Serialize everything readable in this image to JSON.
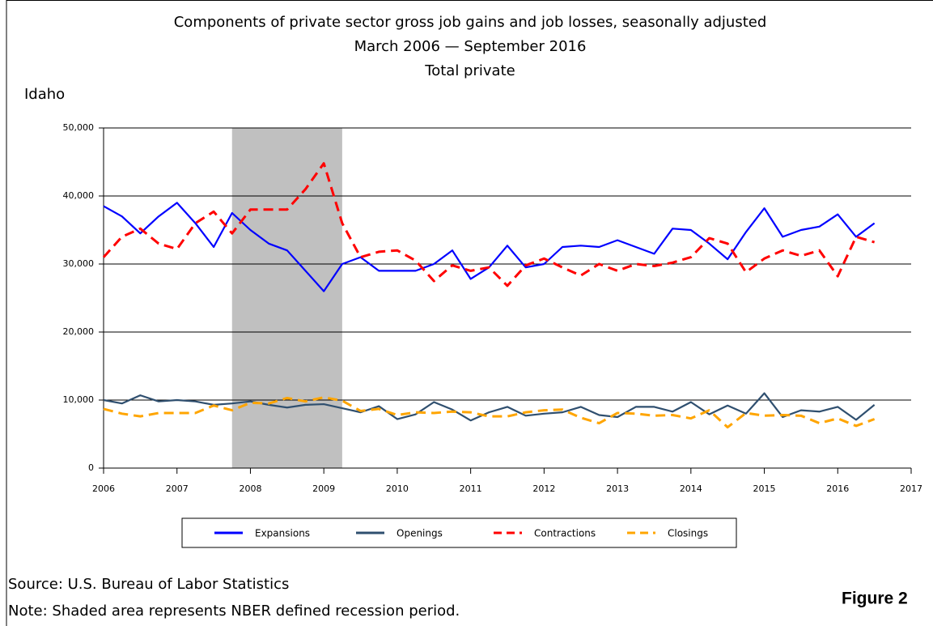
{
  "chart_data": {
    "type": "line",
    "title": "Components of private sector gross job gains and job losses, seasonally adjusted",
    "subtitle": "March 2006 — September 2016",
    "subtitle2": "Total private",
    "region_label": "Idaho",
    "source": "Source: U.S. Bureau of Labor Statistics",
    "note": "Note: Shaded area represents NBER defined recession period.",
    "figure_label": "Figure 2",
    "shaded_x": [
      2007.75,
      2009.25
    ],
    "shade_color": "#c0c0c0",
    "x": [
      2006,
      2006.25,
      2006.5,
      2006.75,
      2007,
      2007.25,
      2007.5,
      2007.75,
      2008,
      2008.25,
      2008.5,
      2008.75,
      2009,
      2009.25,
      2009.5,
      2009.75,
      2010,
      2010.25,
      2010.5,
      2010.75,
      2011,
      2011.25,
      2011.5,
      2011.75,
      2012,
      2012.25,
      2012.5,
      2012.75,
      2013,
      2013.25,
      2013.5,
      2013.75,
      2014,
      2014.25,
      2014.5,
      2014.75,
      2015,
      2015.25,
      2015.5,
      2015.75,
      2016,
      2016.25,
      2016.5
    ],
    "xlim": [
      2006,
      2017
    ],
    "xticks": [
      2006,
      2007,
      2008,
      2009,
      2010,
      2011,
      2012,
      2013,
      2014,
      2015,
      2016,
      2017
    ],
    "ylim": [
      0,
      50000
    ],
    "yticks": [
      0,
      {
        "value": 10000,
        "label": "10,000"
      },
      {
        "value": 20000,
        "label": "20,000"
      },
      {
        "value": 30000,
        "label": "30,000"
      },
      {
        "value": 40000,
        "label": "40,000"
      },
      {
        "value": 50000,
        "label": "50,000"
      }
    ],
    "grid": true,
    "series": [
      {
        "name": "Expansions",
        "color": "#0000ff",
        "line_style": "solid",
        "values": [
          38500,
          37000,
          34500,
          37000,
          39000,
          36000,
          32500,
          37500,
          35000,
          33000,
          32000,
          29000,
          26000,
          30000,
          31000,
          29000,
          29000,
          29000,
          30000,
          32000,
          27800,
          29500,
          32700,
          29500,
          30000,
          32500,
          32700,
          32500,
          33500,
          32500,
          31500,
          35200,
          35000,
          33000,
          30700,
          34700,
          38200,
          34000,
          35000,
          35500,
          37300,
          34000,
          36000
        ]
      },
      {
        "name": "Openings",
        "color": "#2f4f6f",
        "line_style": "solid",
        "values": [
          10000,
          9500,
          10700,
          9800,
          10000,
          9800,
          9300,
          9500,
          9800,
          9300,
          8900,
          9300,
          9400,
          8800,
          8200,
          9100,
          7200,
          7900,
          9700,
          8600,
          7000,
          8200,
          9000,
          7700,
          8000,
          8200,
          9000,
          7800,
          7500,
          9000,
          9000,
          8300,
          9700,
          7900,
          9200,
          8000,
          11000,
          7500,
          8500,
          8300,
          9000,
          7100,
          9300
        ]
      },
      {
        "name": "Contractions",
        "color": "#ff0000",
        "line_style": "dashed",
        "values": [
          31000,
          34000,
          35200,
          33000,
          32200,
          36000,
          37700,
          34500,
          38000,
          38000,
          38000,
          41000,
          44800,
          36000,
          31000,
          31800,
          32000,
          30500,
          27500,
          29800,
          29000,
          29500,
          26800,
          29800,
          30800,
          29500,
          28300,
          30000,
          29000,
          30000,
          29700,
          30200,
          31000,
          33800,
          33000,
          28800,
          30800,
          32000,
          31200,
          32000,
          28200,
          34000,
          33200
        ]
      },
      {
        "name": "Closings",
        "color": "#ffa500",
        "line_style": "dashed",
        "values": [
          8700,
          8000,
          7600,
          8100,
          8100,
          8100,
          9200,
          8500,
          9600,
          9500,
          10300,
          9800,
          10400,
          9900,
          8400,
          8700,
          7800,
          8200,
          8100,
          8300,
          8200,
          7600,
          7600,
          8200,
          8500,
          8600,
          7400,
          6600,
          8100,
          8000,
          7700,
          7800,
          7300,
          8500,
          6000,
          8100,
          7700,
          7800,
          7700,
          6600,
          7300,
          6200,
          7200
        ]
      }
    ]
  }
}
